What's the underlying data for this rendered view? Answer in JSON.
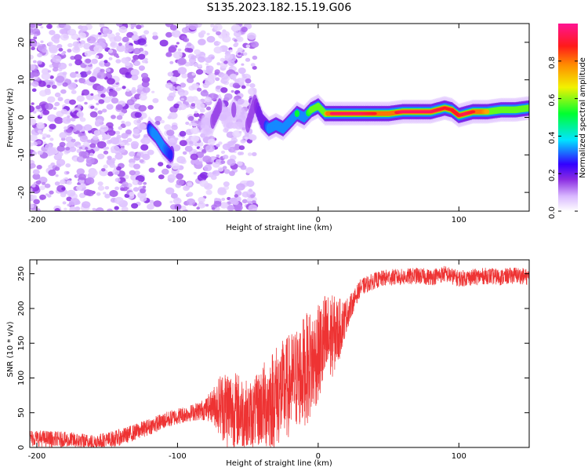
{
  "figure_title": "S135.2023.182.15.19.G06",
  "chart_data": [
    {
      "type": "heatmap",
      "title": "",
      "xlabel": "Height of straight line (km)",
      "ylabel": "Frequency (Hz)",
      "xlim": [
        -205,
        150
      ],
      "ylim": [
        -25,
        25
      ],
      "x_ticks": [
        -200,
        -100,
        0,
        100
      ],
      "y_ticks": [
        -20,
        -10,
        0,
        10,
        20
      ],
      "colorbar": {
        "label": "Normalized spectral amplitude",
        "range": [
          0,
          1
        ],
        "ticks": [
          0.0,
          0.2,
          0.4,
          0.6,
          0.8
        ],
        "palette": [
          "#ffffff",
          "#d9b8ff",
          "#8a2be2",
          "#3300ff",
          "#00e5ff",
          "#00ff30",
          "#f2f200",
          "#ff8c00",
          "#ff1a1a",
          "#ff1493"
        ]
      },
      "noise_region_x": [
        -205,
        -45
      ],
      "ridge": {
        "x": [
          -120,
          -115,
          -110,
          -105,
          -80,
          -75,
          -70,
          -65,
          -60,
          -55,
          -50,
          -45,
          -40,
          -35,
          -30,
          -25,
          -20,
          -15,
          -10,
          -5,
          0,
          5,
          10,
          20,
          30,
          40,
          50,
          60,
          70,
          80,
          90,
          95,
          100,
          105,
          110,
          120,
          130,
          140,
          150
        ],
        "y": [
          -3,
          -5,
          -8,
          -10,
          -2,
          -1,
          3,
          -1,
          2,
          0,
          -2,
          4,
          -1,
          -3,
          -2,
          -3,
          -1,
          1,
          0,
          2,
          3,
          1,
          1,
          1,
          1,
          1,
          1,
          1.5,
          1.5,
          1.5,
          2.5,
          2,
          0.5,
          1,
          1.5,
          1.5,
          2,
          2,
          2.5
        ],
        "amplitude": [
          0.35,
          0.45,
          0.4,
          0.35,
          0.15,
          0.2,
          0.2,
          0.15,
          0.2,
          0.15,
          0.2,
          0.2,
          0.3,
          0.4,
          0.45,
          0.45,
          0.5,
          0.55,
          0.5,
          0.6,
          0.7,
          0.7,
          0.95,
          0.95,
          0.95,
          0.9,
          0.85,
          0.95,
          0.95,
          0.95,
          0.9,
          0.9,
          0.9,
          0.95,
          0.9,
          0.75,
          0.7,
          0.7,
          0.65
        ]
      }
    },
    {
      "type": "line",
      "title": "",
      "xlabel": "Height of straight line (km)",
      "ylabel": "SNR (10 * v/v)",
      "xlim": [
        -205,
        150
      ],
      "ylim": [
        0,
        270
      ],
      "x_ticks": [
        -200,
        -100,
        0,
        100
      ],
      "y_ticks": [
        0,
        50,
        100,
        150,
        200,
        250
      ],
      "color": "#ee3333",
      "x": [
        -205,
        -190,
        -175,
        -160,
        -150,
        -140,
        -130,
        -120,
        -110,
        -100,
        -90,
        -80,
        -75,
        -70,
        -65,
        -60,
        -55,
        -50,
        -45,
        -40,
        -35,
        -30,
        -25,
        -20,
        -15,
        -10,
        -5,
        0,
        5,
        10,
        15,
        20,
        25,
        30,
        40,
        50,
        60,
        70,
        80,
        90,
        100,
        110,
        120,
        130,
        140,
        150
      ],
      "values": [
        14,
        12,
        10,
        7,
        10,
        15,
        22,
        30,
        38,
        45,
        50,
        55,
        60,
        62,
        58,
        55,
        52,
        45,
        50,
        60,
        65,
        75,
        80,
        90,
        100,
        110,
        120,
        135,
        150,
        160,
        170,
        190,
        210,
        230,
        240,
        245,
        245,
        247,
        245,
        250,
        243,
        245,
        247,
        245,
        248,
        245
      ],
      "spread": [
        12,
        12,
        12,
        12,
        12,
        12,
        12,
        12,
        12,
        12,
        12,
        16,
        25,
        45,
        60,
        55,
        55,
        50,
        50,
        60,
        70,
        75,
        75,
        75,
        75,
        80,
        80,
        70,
        75,
        60,
        45,
        25,
        15,
        12,
        12,
        12,
        12,
        12,
        12,
        12,
        12,
        12,
        12,
        12,
        12,
        12
      ]
    }
  ]
}
